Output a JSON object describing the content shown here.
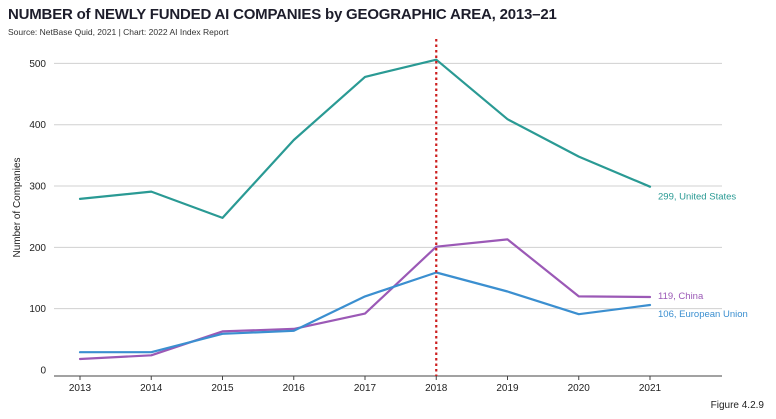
{
  "header": {
    "title": "NUMBER of NEWLY FUNDED AI COMPANIES by GEOGRAPHIC AREA, 2013–21",
    "source": "Source: NetBase Quid, 2021 | Chart: 2022 AI Index Report"
  },
  "figure_label": "Figure 4.2.9",
  "chart_data": {
    "type": "line",
    "x": [
      2013,
      2014,
      2015,
      2016,
      2017,
      2018,
      2019,
      2020,
      2021
    ],
    "series": [
      {
        "name": "United States",
        "end_label": "299, United States",
        "color": "#2a9a94",
        "values": [
          279,
          291,
          248,
          375,
          478,
          506,
          409,
          348,
          299
        ]
      },
      {
        "name": "China",
        "end_label": "119, China",
        "color": "#9b59b6",
        "values": [
          18,
          24,
          63,
          67,
          92,
          201,
          213,
          120,
          119
        ]
      },
      {
        "name": "European Union",
        "end_label": "106, European Union",
        "color": "#3b8fd0",
        "values": [
          29,
          29,
          59,
          64,
          120,
          159,
          128,
          91,
          106
        ]
      }
    ],
    "ylabel": "Number of Companies",
    "ylim": [
      0,
      530
    ],
    "yticks": [
      0,
      100,
      200,
      300,
      400,
      500
    ],
    "xticks": [
      "2013",
      "2014",
      "2015",
      "2016",
      "2017",
      "2018",
      "2019",
      "2020",
      "2021"
    ],
    "grid": "horizontal",
    "annotation": {
      "type": "vertical-dotted-line",
      "x": 2018,
      "color": "#cc1f1f"
    }
  }
}
